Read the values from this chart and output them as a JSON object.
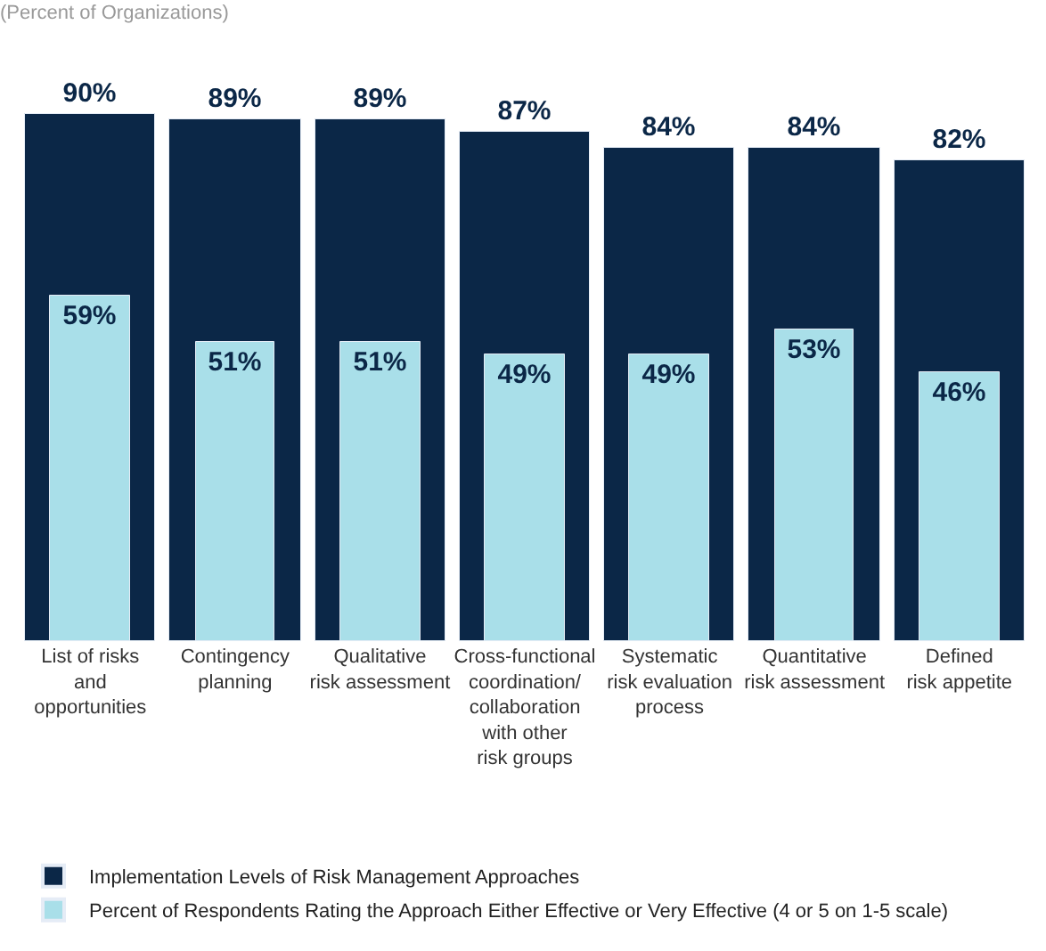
{
  "chart_data": {
    "type": "bar",
    "subtitle": "(Percent of Organizations)",
    "categories": [
      "List of risks\nand\nopportunities",
      "Contingency\nplanning",
      "Qualitative\nrisk assessment",
      "Cross-functional\ncoordination/\ncollaboration\nwith other\nrisk groups",
      "Systematic\nrisk evaluation\nprocess",
      "Quantitative\nrisk assessment",
      "Defined\nrisk appetite"
    ],
    "series": [
      {
        "name": "Implementation Levels of Risk Management Approaches",
        "color": "#0b2747",
        "values": [
          90,
          89,
          89,
          87,
          84,
          84,
          82
        ],
        "value_labels": [
          "90%",
          "89%",
          "89%",
          "87%",
          "84%",
          "84%",
          "82%"
        ]
      },
      {
        "name": "Percent of Respondents Rating the Approach Either Effective or Very Effective (4 or 5 on 1-5 scale)",
        "color": "#a9dfe9",
        "values": [
          59,
          51,
          51,
          49,
          49,
          53,
          46
        ],
        "value_labels": [
          "59%",
          "51%",
          "51%",
          "49%",
          "49%",
          "53%",
          "46%"
        ]
      }
    ],
    "legend": "bottom"
  }
}
